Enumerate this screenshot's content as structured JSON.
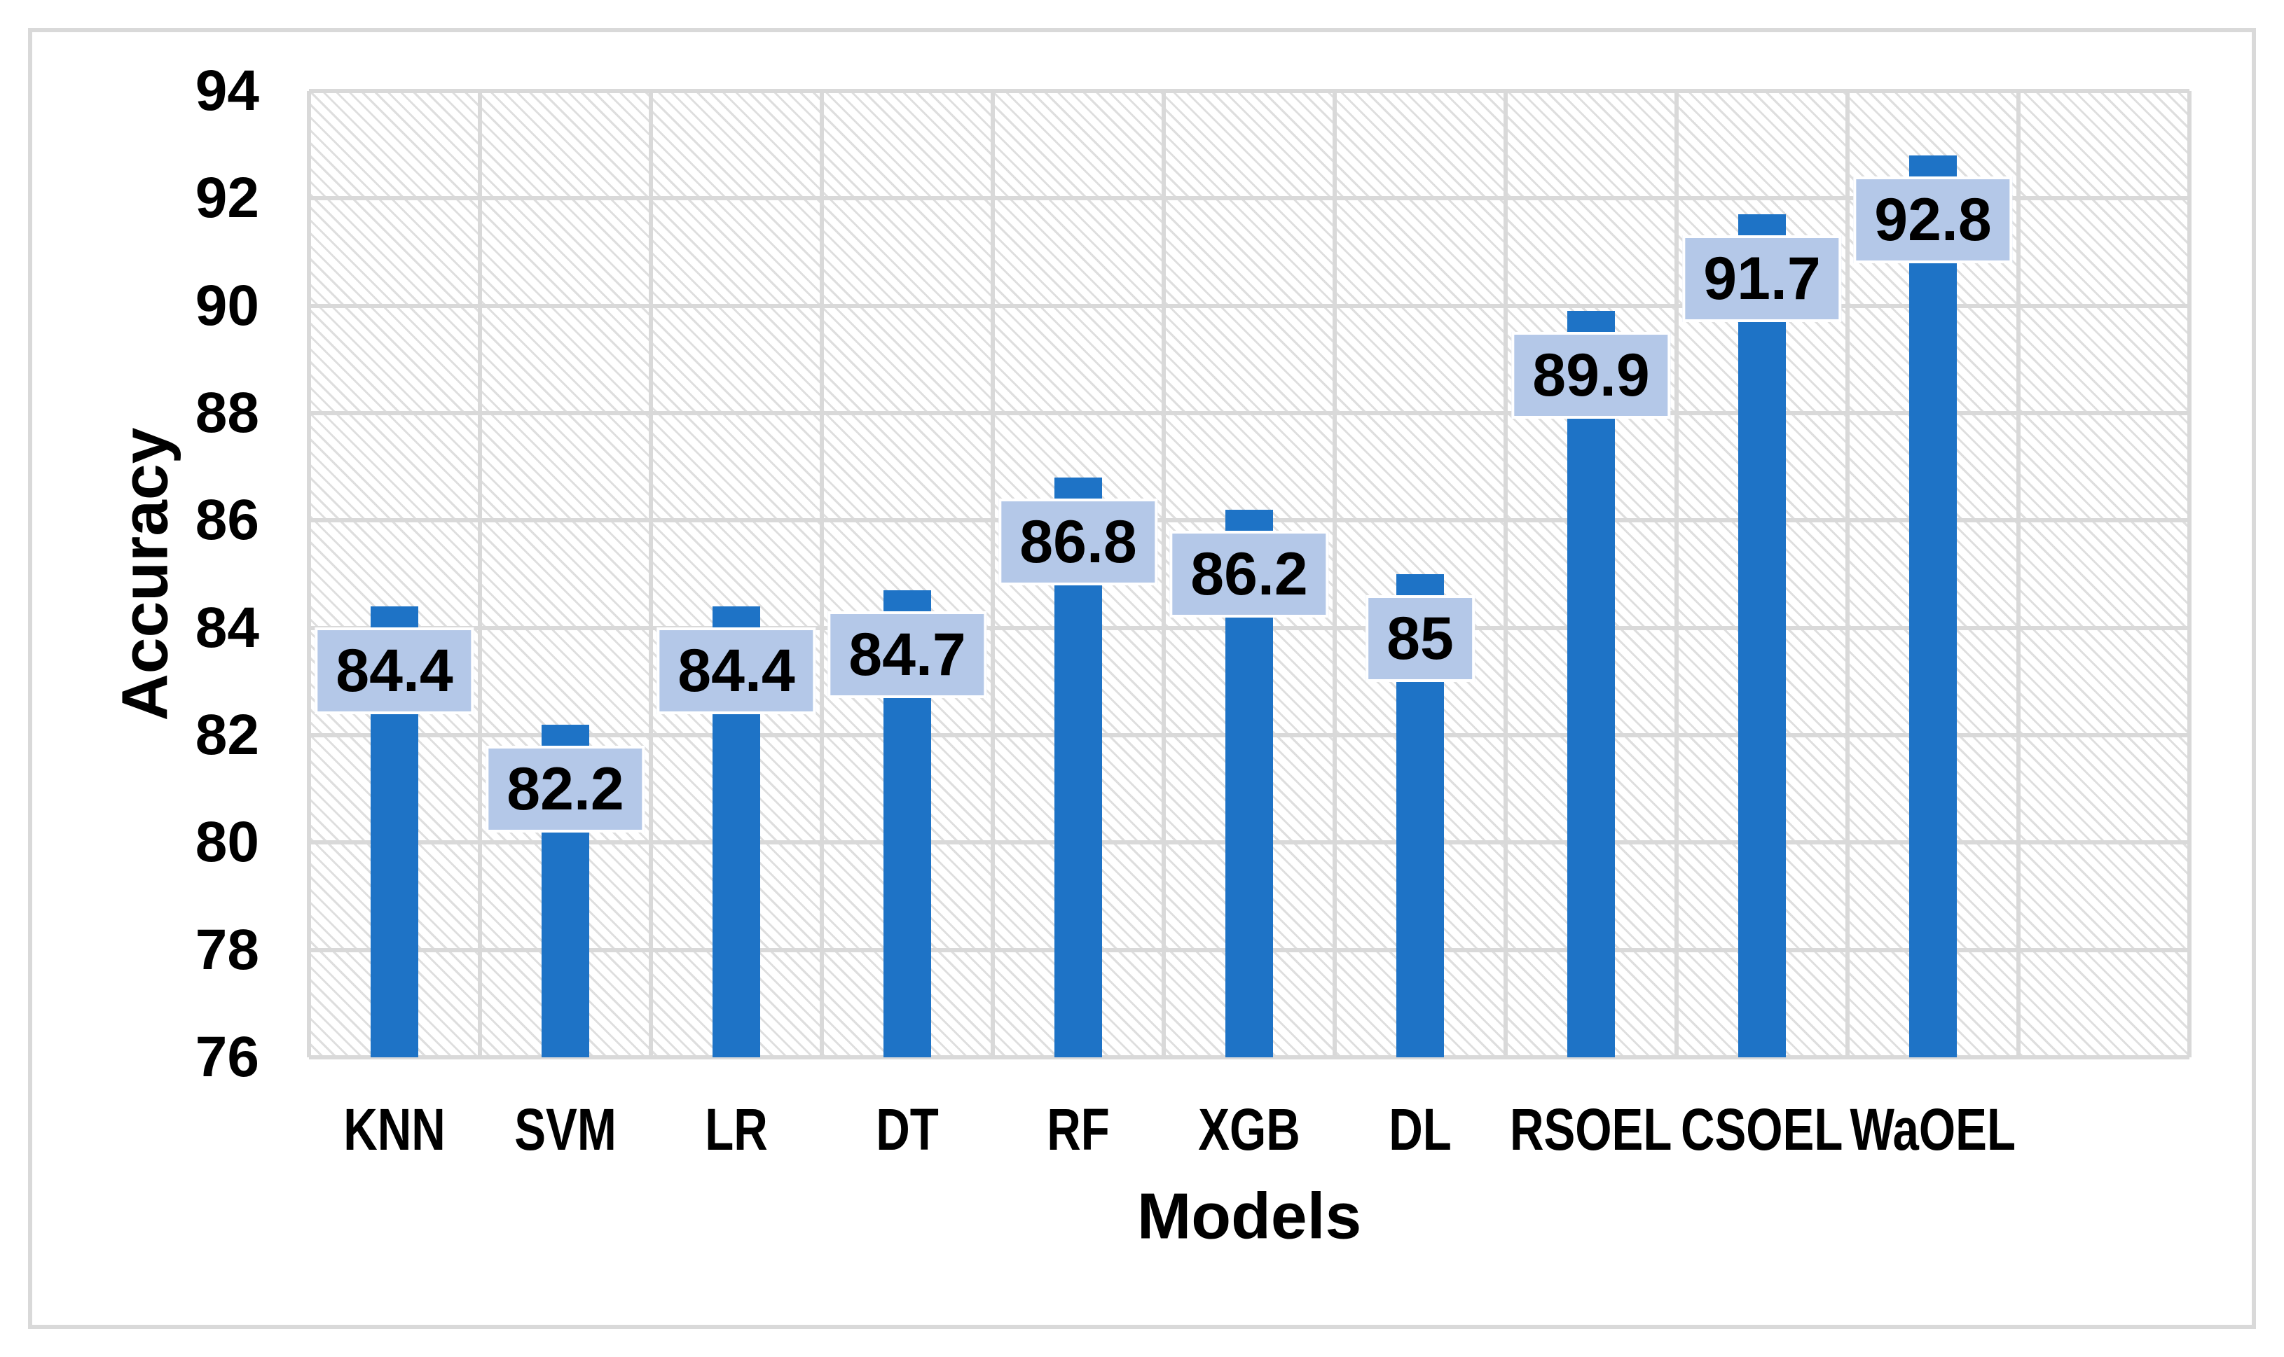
{
  "chart_data": {
    "type": "bar",
    "title": "",
    "xlabel": "Models",
    "ylabel": "Accuracy",
    "categories": [
      "KNN",
      "SVM",
      "LR",
      "DT",
      "RF",
      "XGB",
      "DL",
      "RSOEL",
      "CSOEL",
      "WaOEL"
    ],
    "values": [
      84.4,
      82.2,
      84.4,
      84.7,
      86.8,
      86.2,
      85,
      89.9,
      91.7,
      92.8
    ],
    "value_labels": [
      "84.4",
      "82.2",
      "84.4",
      "84.7",
      "86.8",
      "86.2",
      "85",
      "89.9",
      "91.7",
      "92.8"
    ],
    "y_ticks": [
      76,
      78,
      80,
      82,
      84,
      86,
      88,
      90,
      92,
      94
    ],
    "ylim": [
      76,
      94
    ],
    "empty_trailing_slots": 1,
    "grid": true,
    "legend": "none",
    "plot_background": "light-downward-diagonal-hatch",
    "colors": {
      "bar": "#1e73c6",
      "data_label_bg": "#b4c8e8",
      "data_label_text": "#000000",
      "gridline": "#d9d9d9",
      "hatch": "#dedede",
      "frame_border": "#d9d9d9",
      "background": "#ffffff",
      "text": "#000000"
    }
  }
}
